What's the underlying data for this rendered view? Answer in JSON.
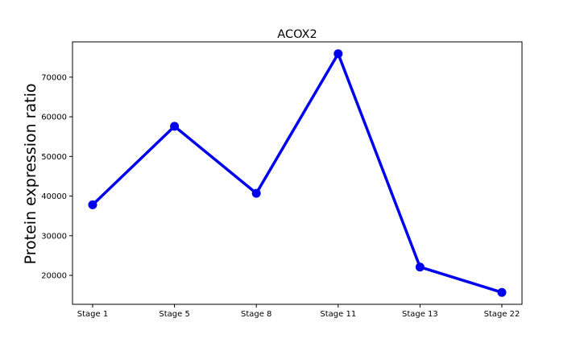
{
  "chart_data": {
    "type": "line",
    "title": "ACOX2",
    "xlabel": "",
    "ylabel": "Protein expression ratio",
    "categories": [
      "Stage 1",
      "Stage 5",
      "Stage 8",
      "Stage 11",
      "Stage 13",
      "Stage 22"
    ],
    "series": [
      {
        "values": [
          37800,
          57600,
          40700,
          75900,
          22100,
          15700
        ]
      }
    ],
    "yticks": [
      20000,
      30000,
      40000,
      50000,
      60000,
      70000
    ],
    "ytick_labels": [
      "20000",
      "30000",
      "40000",
      "50000",
      "60000",
      "70000"
    ],
    "ylim": [
      12700,
      78900
    ],
    "grid": false,
    "legend": false,
    "colors": {
      "line": "#0000ee",
      "marker": "#0000ee",
      "axes": "#000000",
      "background": "#ffffff"
    }
  }
}
